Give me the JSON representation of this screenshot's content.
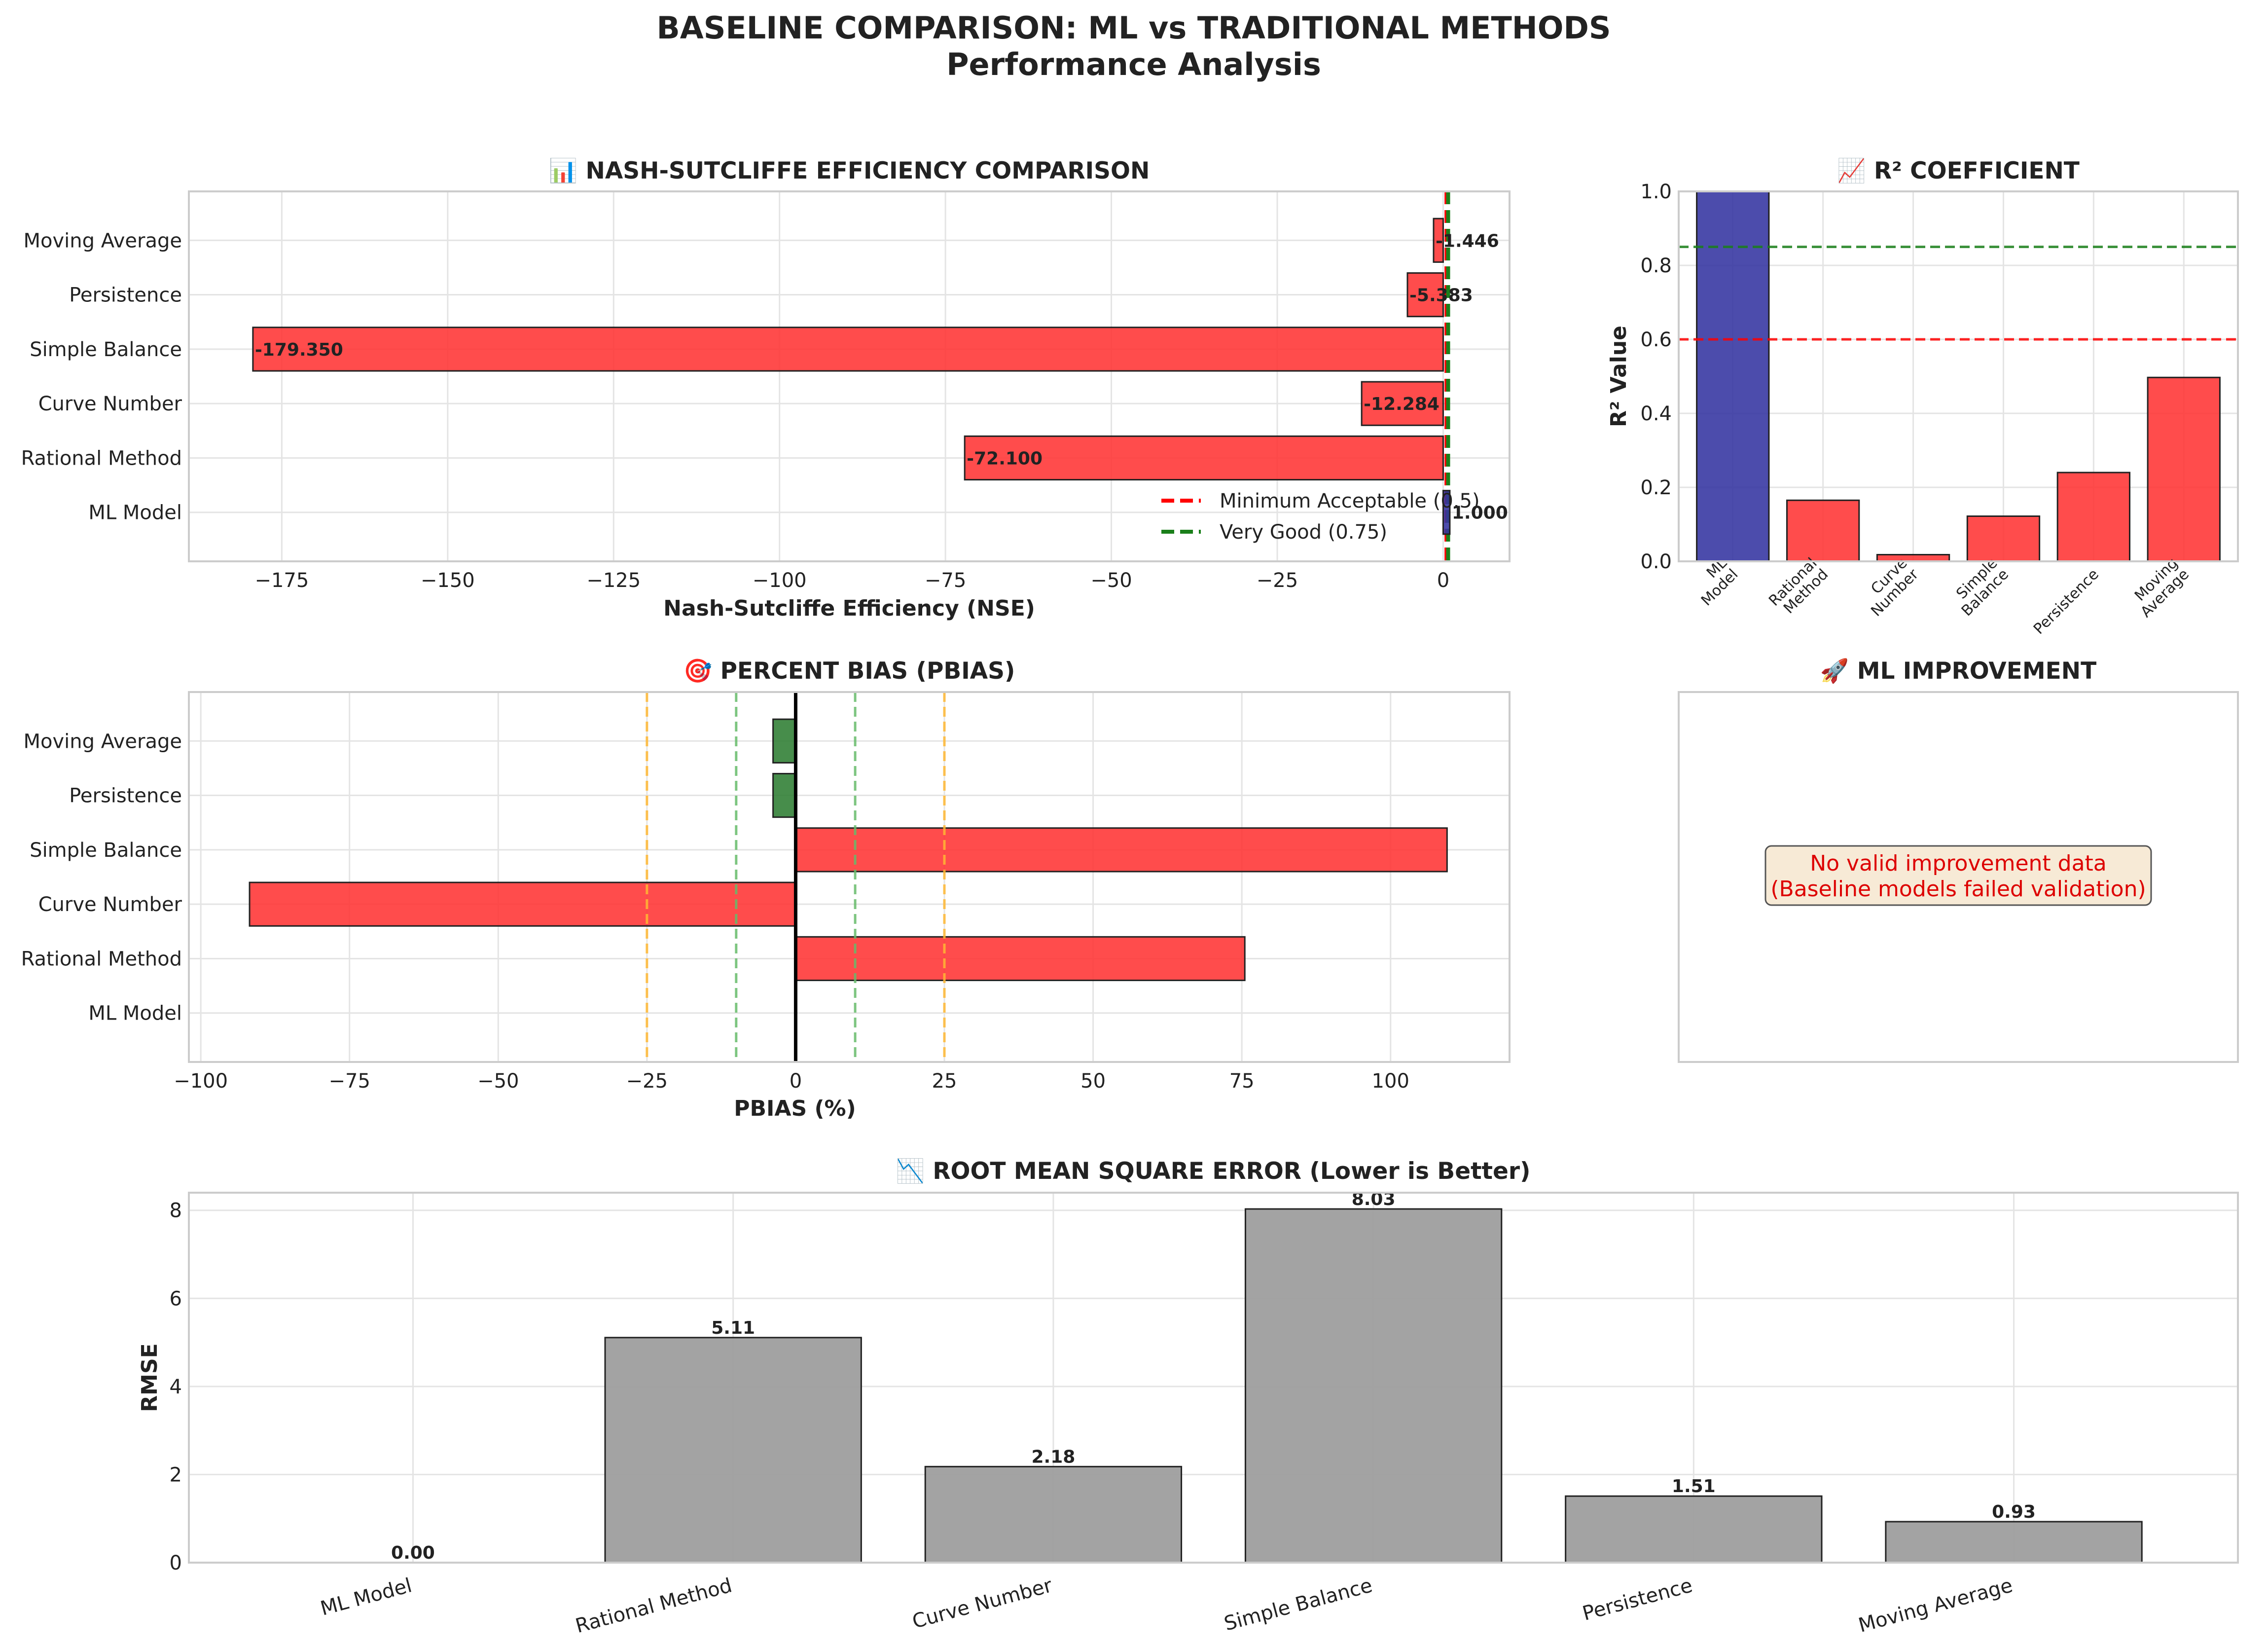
{
  "figure": {
    "title_line1": "BASELINE COMPARISON: ML vs TRADITIONAL METHODS",
    "title_line2": "Performance Analysis"
  },
  "colors": {
    "ml": "#3333a0",
    "bad": "#ff3333",
    "good": "#2e7d32",
    "rmse": "#9e9e9e",
    "edge": "#222222",
    "red_ref": "#ff0000",
    "green_ref": "#1a7f1a",
    "orange_ref": "#ffb733",
    "lightgreen_ref": "#66bb6a"
  },
  "chart_data": [
    {
      "id": "nse",
      "type": "bar",
      "orientation": "horizontal",
      "title": "📊 NASH-SUTCLIFFE EFFICIENCY COMPARISON",
      "xlabel": "Nash-Sutcliffe Efficiency (NSE)",
      "categories": [
        "ML Model",
        "Rational Method",
        "Curve Number",
        "Simple Balance",
        "Persistence",
        "Moving Average"
      ],
      "values": [
        1.0,
        -72.1,
        -12.284,
        -179.35,
        -5.383,
        -1.446
      ],
      "value_labels": [
        "1.000",
        "-72.100",
        "-12.284",
        "-179.350",
        "-5.383",
        "-1.446"
      ],
      "xlim": [
        -189,
        10
      ],
      "xticks": [
        -175,
        -150,
        -125,
        -100,
        -75,
        -50,
        -25,
        0
      ],
      "xtick_labels": [
        "−175",
        "−150",
        "−125",
        "−100",
        "−75",
        "−50",
        "−25",
        "0"
      ],
      "reference_lines": [
        {
          "value": 0.5,
          "label": "Minimum Acceptable (0.5)",
          "color": "red"
        },
        {
          "value": 0.75,
          "label": "Very Good (0.75)",
          "color": "green"
        }
      ],
      "legend": "lower-right",
      "grid": true
    },
    {
      "id": "r2",
      "type": "bar",
      "title": "📈 R² COEFFICIENT",
      "ylabel": "R² Value",
      "categories": [
        "ML\nModel",
        "Rational\nMethod",
        "Curve\nNumber",
        "Simple\nBalance",
        "Persistence",
        "Moving\nAverage"
      ],
      "values": [
        1.0,
        0.165,
        0.018,
        0.122,
        0.24,
        0.497
      ],
      "ylim": [
        0,
        1.0
      ],
      "yticks": [
        0.0,
        0.2,
        0.4,
        0.6,
        0.8,
        1.0
      ],
      "ytick_labels": [
        "0.0",
        "0.2",
        "0.4",
        "0.6",
        "0.8",
        "1.0"
      ],
      "reference_lines": [
        {
          "value": 0.6,
          "color": "red"
        },
        {
          "value": 0.85,
          "color": "green"
        }
      ],
      "grid": true
    },
    {
      "id": "pbias",
      "type": "bar",
      "orientation": "horizontal",
      "title": "🎯 PERCENT BIAS (PBIAS)",
      "xlabel": "PBIAS (%)",
      "categories": [
        "ML Model",
        "Rational Method",
        "Curve Number",
        "Simple Balance",
        "Persistence",
        "Moving Average"
      ],
      "values": [
        0.0,
        75.5,
        -91.8,
        109.5,
        -3.8,
        -3.8
      ],
      "xlim": [
        -102,
        120
      ],
      "xticks": [
        -100,
        -75,
        -50,
        -25,
        0,
        25,
        50,
        75,
        100
      ],
      "xtick_labels": [
        "−100",
        "−75",
        "−50",
        "−25",
        "0",
        "25",
        "50",
        "75",
        "100"
      ],
      "reference_lines": [
        {
          "value": 0,
          "color": "black"
        },
        {
          "value": 10,
          "color": "lightgreen"
        },
        {
          "value": -10,
          "color": "lightgreen"
        },
        {
          "value": 25,
          "color": "orange"
        },
        {
          "value": -25,
          "color": "orange"
        }
      ],
      "grid": true
    },
    {
      "id": "rmse",
      "type": "bar",
      "title": "📉 ROOT MEAN SQUARE ERROR (Lower is Better)",
      "ylabel": "RMSE",
      "categories": [
        "ML Model",
        "Rational Method",
        "Curve Number",
        "Simple Balance",
        "Persistence",
        "Moving Average"
      ],
      "values": [
        0.0,
        5.11,
        2.18,
        8.03,
        1.51,
        0.93
      ],
      "value_labels": [
        "0.00",
        "5.11",
        "2.18",
        "8.03",
        "1.51",
        "0.93"
      ],
      "ylim": [
        0,
        8.4
      ],
      "yticks": [
        0,
        2,
        4,
        6,
        8
      ],
      "ytick_labels": [
        "0",
        "2",
        "4",
        "6",
        "8"
      ],
      "grid": true
    }
  ],
  "improvement_panel": {
    "title": "🚀 ML IMPROVEMENT",
    "message_line1": "No valid improvement data",
    "message_line2": "(Baseline models failed validation)"
  }
}
